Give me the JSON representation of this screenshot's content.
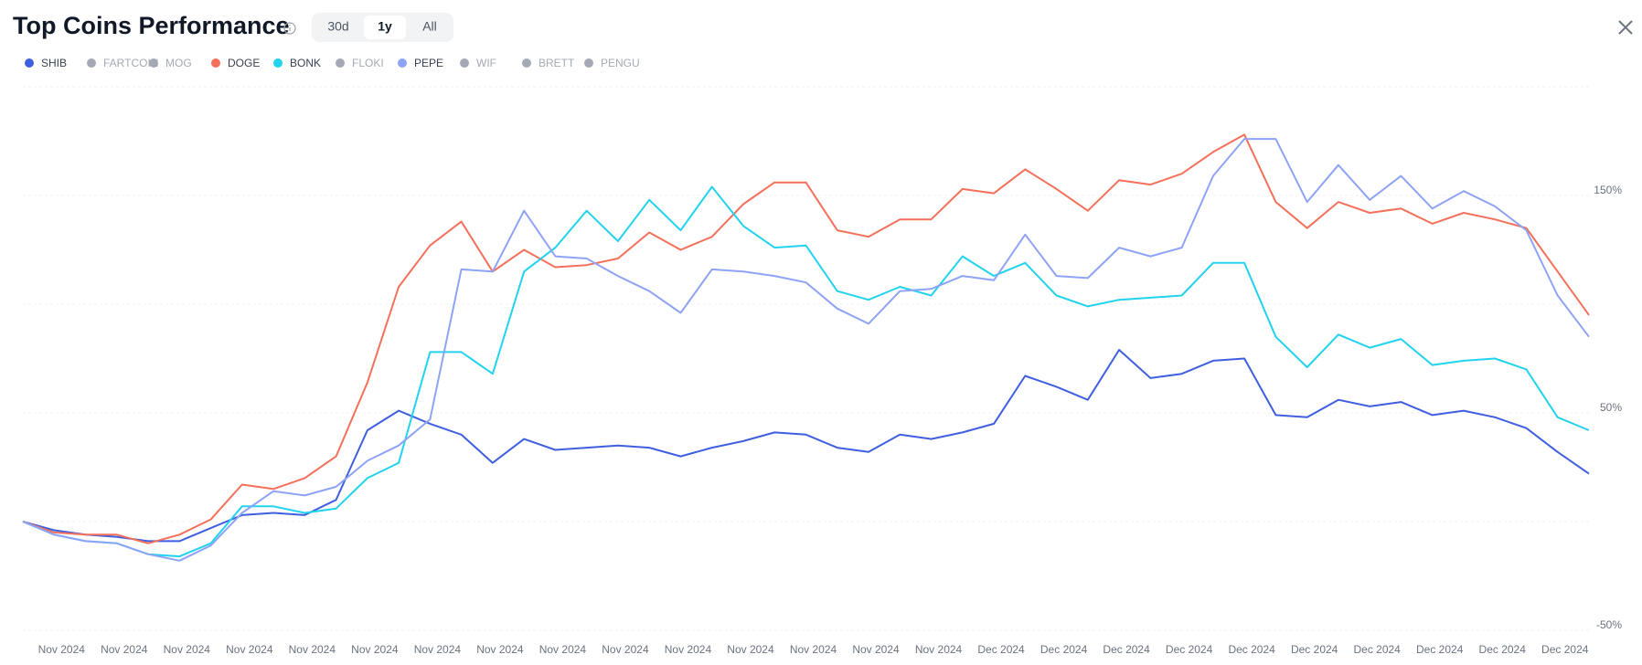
{
  "header": {
    "title": "Top Coins Performance",
    "ranges": [
      "30d",
      "1y",
      "All"
    ],
    "active_range": 1
  },
  "chart_data": {
    "type": "line",
    "categories": [
      null,
      "Nov 2024",
      null,
      "Nov 2024",
      null,
      "Nov 2024",
      null,
      "Nov 2024",
      null,
      "Nov 2024",
      null,
      "Nov 2024",
      null,
      "Nov 2024",
      null,
      "Nov 2024",
      null,
      "Nov 2024",
      null,
      "Nov 2024",
      null,
      "Nov 2024",
      null,
      "Nov 2024",
      null,
      "Nov 2024",
      null,
      "Nov 2024",
      null,
      "Nov 2024",
      null,
      "Dec 2024",
      null,
      "Dec 2024",
      null,
      "Dec 2024",
      null,
      "Dec 2024",
      null,
      "Dec 2024",
      null,
      "Dec 2024",
      null,
      "Dec 2024",
      null,
      "Dec 2024",
      null,
      "Dec 2024",
      null,
      "Dec 2024",
      null
    ],
    "ylim": [
      -50,
      200
    ],
    "yticks": [
      {
        "value": -50,
        "label": "-50%"
      },
      {
        "value": 50,
        "label": "50%"
      },
      {
        "value": 150,
        "label": "150%"
      }
    ],
    "ygrid": [
      -50,
      0,
      50,
      100,
      150,
      200
    ],
    "grid": true,
    "inactive_color": "#a3a9b5",
    "series": [
      {
        "name": "SHIB",
        "color": "#3f5fe0",
        "visible": true,
        "values": [
          0,
          -4,
          -6,
          -7,
          -9,
          -9,
          -3,
          3,
          4,
          3,
          10,
          42,
          51,
          45,
          40,
          27,
          38,
          33,
          34,
          35,
          34,
          30,
          34,
          37,
          41,
          40,
          34,
          32,
          40,
          38,
          41,
          45,
          67,
          62,
          56,
          79,
          66,
          68,
          74,
          75,
          49,
          48,
          56,
          53,
          55,
          49,
          51,
          48,
          43,
          32,
          22
        ]
      },
      {
        "name": "FARTCOIN",
        "color": "#a3a9b5",
        "visible": false
      },
      {
        "name": "MOG",
        "color": "#a3a9b5",
        "visible": false
      },
      {
        "name": "DOGE",
        "color": "#f4705a",
        "visible": true,
        "values": [
          0,
          -5,
          -6,
          -6,
          -10,
          -6,
          1,
          17,
          15,
          20,
          30,
          64,
          108,
          127,
          138,
          115,
          125,
          117,
          118,
          121,
          133,
          125,
          131,
          146,
          156,
          156,
          134,
          131,
          139,
          139,
          153,
          151,
          162,
          153,
          143,
          157,
          155,
          160,
          170,
          178,
          147,
          135,
          147,
          142,
          144,
          137,
          142,
          139,
          135,
          115,
          95
        ]
      },
      {
        "name": "BONK",
        "color": "#22d3ee",
        "visible": true,
        "values": [
          0,
          -6,
          -9,
          -10,
          -15,
          -16,
          -10,
          7,
          7,
          4,
          6,
          20,
          27,
          78,
          78,
          68,
          115,
          126,
          143,
          129,
          148,
          134,
          154,
          136,
          126,
          127,
          106,
          102,
          108,
          104,
          122,
          113,
          119,
          104,
          99,
          102,
          103,
          104,
          119,
          119,
          85,
          71,
          86,
          80,
          84,
          72,
          74,
          75,
          70,
          48,
          42
        ]
      },
      {
        "name": "FLOKI",
        "color": "#a3a9b5",
        "visible": false
      },
      {
        "name": "PEPE",
        "color": "#8fa3f6",
        "visible": true,
        "values": [
          0,
          -6,
          -9,
          -10,
          -15,
          -18,
          -11,
          4,
          14,
          12,
          16,
          28,
          35,
          47,
          116,
          115,
          143,
          122,
          121,
          113,
          106,
          96,
          116,
          115,
          113,
          110,
          98,
          91,
          106,
          107,
          113,
          111,
          132,
          113,
          112,
          126,
          122,
          126,
          159,
          176,
          176,
          147,
          164,
          148,
          159,
          144,
          152,
          145,
          134,
          104,
          85
        ]
      },
      {
        "name": "WIF",
        "color": "#a3a9b5",
        "visible": false
      },
      {
        "name": "BRETT",
        "color": "#a3a9b5",
        "visible": false
      },
      {
        "name": "PENGU",
        "color": "#a3a9b5",
        "visible": false
      }
    ]
  }
}
